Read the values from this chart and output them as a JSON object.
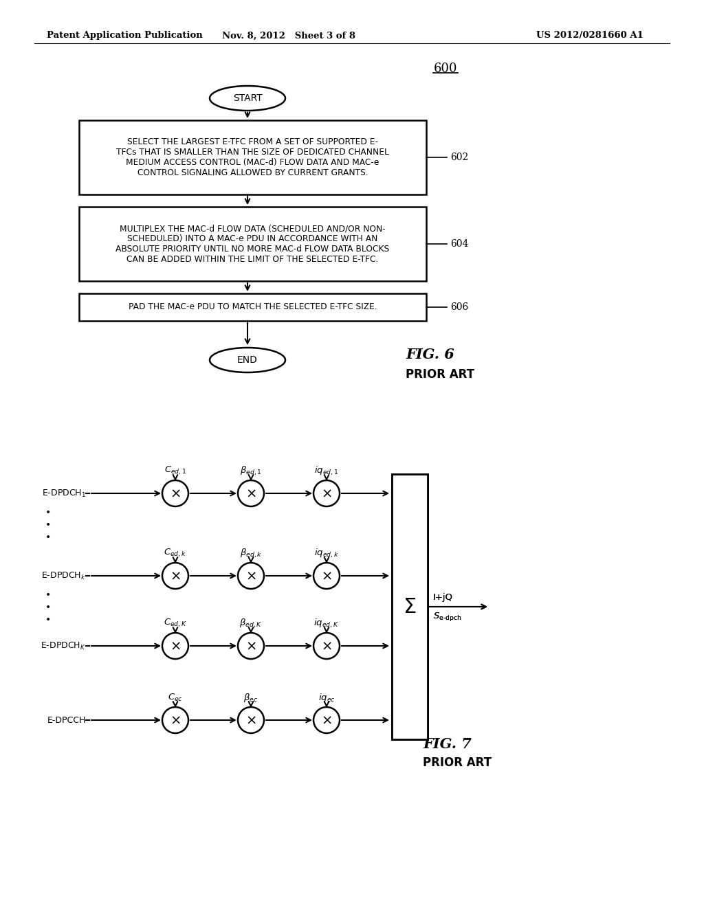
{
  "bg_color": "#ffffff",
  "header_left": "Patent Application Publication",
  "header_center": "Nov. 8, 2012   Sheet 3 of 8",
  "header_right": "US 2012/0281660 A1",
  "box602_text": "SELECT THE LARGEST E-TFC FROM A SET OF SUPPORTED E-\nTFCs THAT IS SMALLER THAN THE SIZE OF DEDICATED CHANNEL\nMEDIUM ACCESS CONTROL (MAC-d) FLOW DATA AND MAC-e\nCONTROL SIGNALING ALLOWED BY CURRENT GRANTS.",
  "box602_ref": "602",
  "box604_text": "MULTIPLEX THE MAC-d FLOW DATA (SCHEDULED AND/OR NON-\nSCHEDULED) INTO A MAC-e PDU IN ACCORDANCE WITH AN\nABSOLUTE PRIORITY UNTIL NO MORE MAC-d FLOW DATA BLOCKS\nCAN BE ADDED WITHIN THE LIMIT OF THE SELECTED E-TFC.",
  "box604_ref": "604",
  "box606_text": "PAD THE MAC-e PDU TO MATCH THE SELECTED E-TFC SIZE.",
  "box606_ref": "606",
  "fig6_caption": "FIG. 6",
  "fig6_subcaption": "PRIOR ART",
  "fig7_caption": "FIG. 7",
  "fig7_subcaption": "PRIOR ART",
  "fig6_number": "600"
}
